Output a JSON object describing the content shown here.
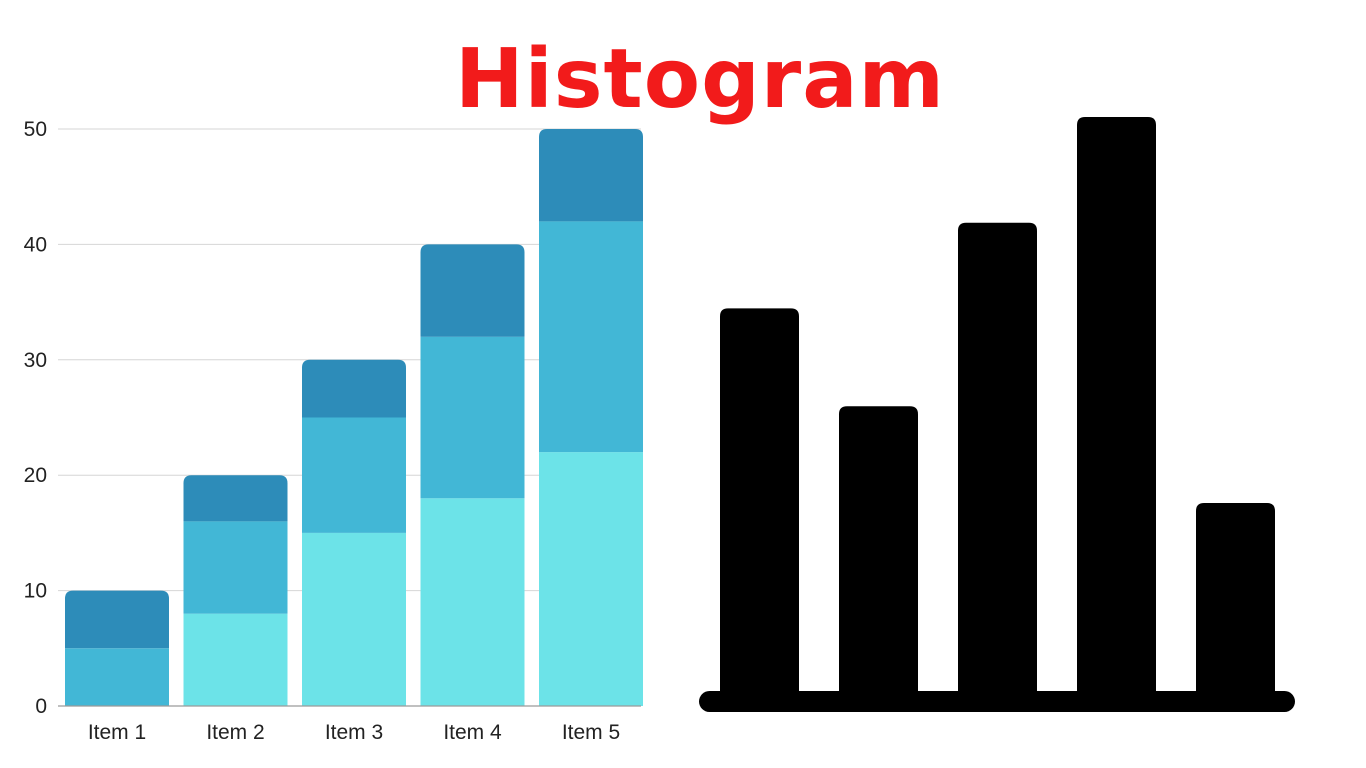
{
  "title": "Histogram",
  "colors": {
    "title": "#f21b1b",
    "gridline": "#d6d6d6",
    "axis": "#9a9a9a",
    "icon": "#000000"
  },
  "chart_data": [
    {
      "type": "bar",
      "stacked": true,
      "categories": [
        "Item 1",
        "Item 2",
        "Item 3",
        "Item 4",
        "Item 5"
      ],
      "series": [
        {
          "color": "#6ce3e8",
          "values": [
            0,
            8,
            15,
            18,
            22
          ]
        },
        {
          "color": "#42b7d6",
          "values": [
            5,
            8,
            10,
            14,
            20
          ]
        },
        {
          "color": "#2d8cb9",
          "values": [
            5,
            4,
            5,
            8,
            8
          ]
        }
      ],
      "yticks": [
        0,
        10,
        20,
        30,
        40,
        50
      ],
      "ylim": [
        0,
        50
      ],
      "grid": true
    },
    {
      "type": "bar",
      "role": "histogram-icon",
      "color": "#000000",
      "values": [
        34,
        25.3,
        41.6,
        51,
        16.7
      ],
      "ylim": [
        0,
        51
      ]
    }
  ]
}
